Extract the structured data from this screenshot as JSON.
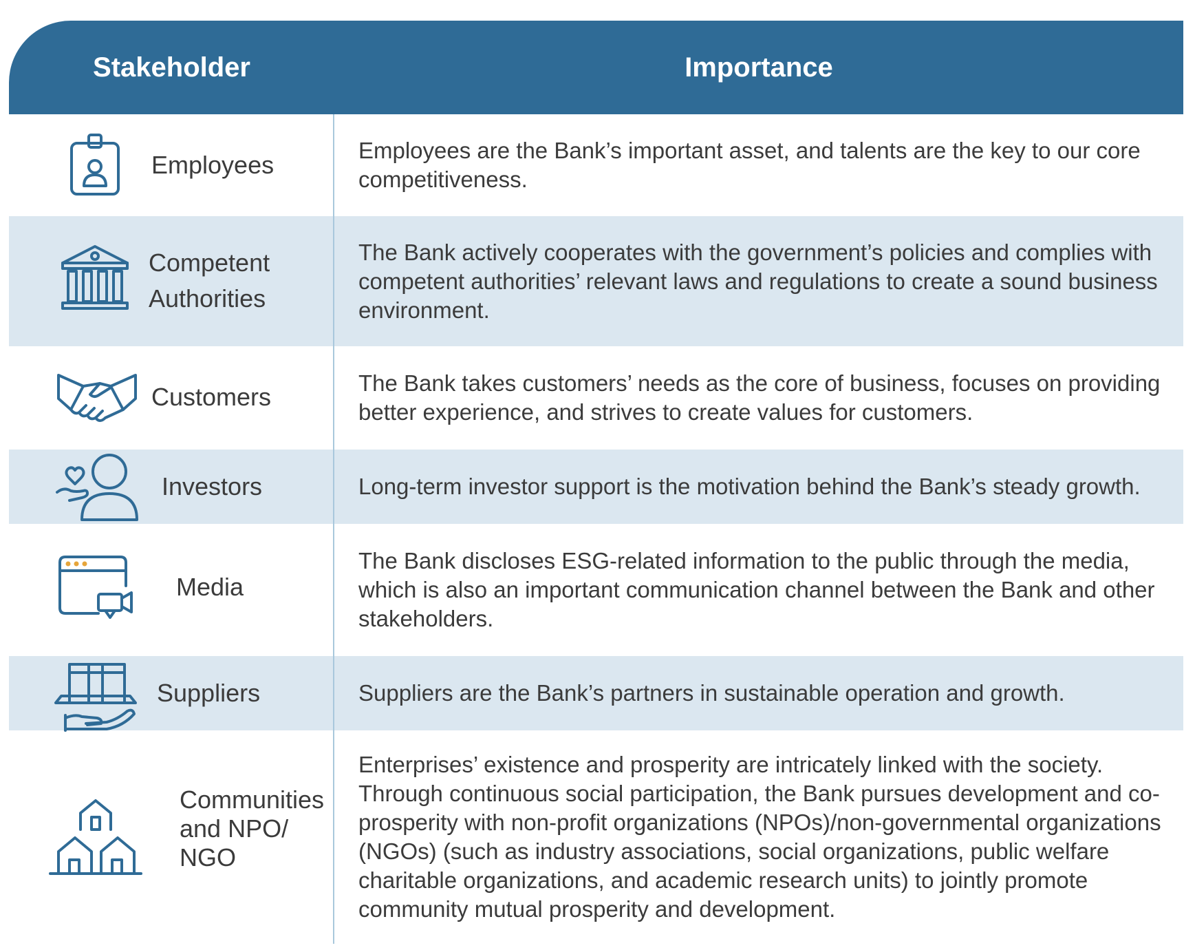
{
  "header": {
    "stakeholder": "Stakeholder",
    "importance": "Importance"
  },
  "rows": [
    {
      "stakeholder": "Employees",
      "icon": "id-badge-icon",
      "importance": "Employees are the Bank’s important asset, and talents are the key to our core competitiveness."
    },
    {
      "stakeholder_lines": [
        "Competent",
        "Authorities"
      ],
      "icon": "government-building-icon",
      "importance": "The Bank actively cooperates with the government’s policies and complies with competent authorities’ relevant laws and regulations to create a sound business environment."
    },
    {
      "stakeholder": "Customers",
      "icon": "handshake-icon",
      "importance": "The Bank takes customers’ needs as the core of business, focuses on providing better experience, and strives to create values for customers."
    },
    {
      "stakeholder": "Investors",
      "icon": "investor-person-heart-icon",
      "importance": "Long-term investor support is the motivation behind the Bank’s steady growth."
    },
    {
      "stakeholder": "Media",
      "icon": "browser-video-icon",
      "importance": "The Bank discloses ESG-related information to the public through the media, which is also an important communication channel between the Bank and other stakeholders."
    },
    {
      "stakeholder": "Suppliers",
      "icon": "package-hand-icon",
      "importance": "Suppliers are the Bank’s partners in sustainable operation and growth."
    },
    {
      "stakeholder_lines": [
        "Communities",
        "and NPO/",
        "NGO"
      ],
      "icon": "houses-icon",
      "importance": "Enterprises’ existence and prosperity are intricately linked with the society. Through continuous social participation, the Bank pursues development and co-prosperity with non-profit organizations (NPOs)/non-governmental organizations (NGOs) (such as industry associations, social organizations, public welfare charitable organizations, and academic research units) to jointly promote community mutual prosperity and development."
    }
  ],
  "colors": {
    "header_bg": "#2f6b96",
    "row_shade": "#dbe7f0",
    "icon": "#2f6b96",
    "text": "#3b3b3b"
  }
}
